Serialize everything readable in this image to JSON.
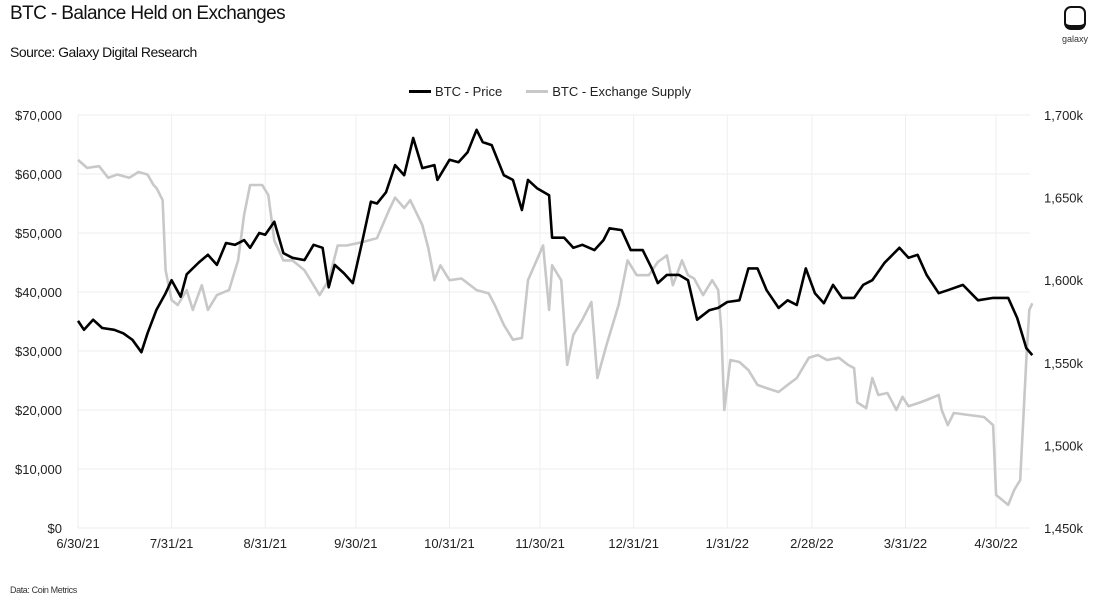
{
  "header": {
    "title": "BTC - Balance Held on Exchanges",
    "subtitle": "Source: Galaxy Digital Research",
    "logo_text": "galaxy"
  },
  "footer": {
    "note": "Data: Coin Metrics"
  },
  "colors": {
    "price": "#000000",
    "supply": "#c8c8c8",
    "grid": "#eeeeee"
  },
  "chart_data": {
    "type": "line",
    "title": "BTC - Balance Held on Exchanges",
    "legend": {
      "placement": "top-center",
      "entries": [
        "BTC - Price",
        "BTC - Exchange Supply"
      ]
    },
    "grid": true,
    "x_axis": {
      "type": "date",
      "range": [
        "2021-06-30",
        "2022-05-12"
      ],
      "tick_dates": [
        "2021-06-30",
        "2021-07-31",
        "2021-08-31",
        "2021-09-30",
        "2021-10-31",
        "2021-11-30",
        "2021-12-31",
        "2022-01-31",
        "2022-02-28",
        "2022-03-31",
        "2022-04-30"
      ],
      "tick_labels": [
        "6/30/21",
        "7/31/21",
        "8/31/21",
        "9/30/21",
        "10/31/21",
        "11/30/21",
        "12/31/21",
        "1/31/22",
        "2/28/22",
        "3/31/22",
        "4/30/22"
      ]
    },
    "y_left": {
      "range": [
        0,
        70000
      ],
      "ticks": [
        0,
        10000,
        20000,
        30000,
        40000,
        50000,
        60000,
        70000
      ],
      "tick_labels": [
        "$0",
        "$10,000",
        "$20,000",
        "$30,000",
        "$40,000",
        "$50,000",
        "$60,000",
        "$70,000"
      ]
    },
    "y_right": {
      "range": [
        1450,
        1700
      ],
      "ticks": [
        1450,
        1500,
        1550,
        1600,
        1650,
        1700
      ],
      "tick_labels": [
        "1,450k",
        "1,500k",
        "1,550k",
        "1,600k",
        "1,650k",
        "1,700k"
      ]
    },
    "series": [
      {
        "name": "BTC - Price",
        "axis": "left",
        "points": [
          [
            "2021-06-30",
            35100
          ],
          [
            "2021-07-02",
            33600
          ],
          [
            "2021-07-05",
            35300
          ],
          [
            "2021-07-08",
            33900
          ],
          [
            "2021-07-12",
            33600
          ],
          [
            "2021-07-15",
            33000
          ],
          [
            "2021-07-18",
            31900
          ],
          [
            "2021-07-21",
            29800
          ],
          [
            "2021-07-23",
            33000
          ],
          [
            "2021-07-26",
            37000
          ],
          [
            "2021-07-29",
            39800
          ],
          [
            "2021-07-31",
            42000
          ],
          [
            "2021-08-03",
            39200
          ],
          [
            "2021-08-05",
            43000
          ],
          [
            "2021-08-09",
            45000
          ],
          [
            "2021-08-12",
            46300
          ],
          [
            "2021-08-15",
            44600
          ],
          [
            "2021-08-18",
            48300
          ],
          [
            "2021-08-21",
            48000
          ],
          [
            "2021-08-24",
            48800
          ],
          [
            "2021-08-26",
            47500
          ],
          [
            "2021-08-29",
            50000
          ],
          [
            "2021-08-31",
            49700
          ],
          [
            "2021-09-03",
            51900
          ],
          [
            "2021-09-06",
            46600
          ],
          [
            "2021-09-09",
            45800
          ],
          [
            "2021-09-13",
            45400
          ],
          [
            "2021-09-16",
            48000
          ],
          [
            "2021-09-19",
            47500
          ],
          [
            "2021-09-21",
            40800
          ],
          [
            "2021-09-23",
            44600
          ],
          [
            "2021-09-26",
            43200
          ],
          [
            "2021-09-29",
            41500
          ],
          [
            "2021-10-02",
            48300
          ],
          [
            "2021-10-05",
            55300
          ],
          [
            "2021-10-07",
            55000
          ],
          [
            "2021-10-10",
            56900
          ],
          [
            "2021-10-13",
            61500
          ],
          [
            "2021-10-16",
            59800
          ],
          [
            "2021-10-19",
            66100
          ],
          [
            "2021-10-22",
            61000
          ],
          [
            "2021-10-26",
            61500
          ],
          [
            "2021-10-27",
            59000
          ],
          [
            "2021-10-31",
            62400
          ],
          [
            "2021-11-03",
            62000
          ],
          [
            "2021-11-06",
            63700
          ],
          [
            "2021-11-09",
            67500
          ],
          [
            "2021-11-11",
            65400
          ],
          [
            "2021-11-14",
            64900
          ],
          [
            "2021-11-18",
            59800
          ],
          [
            "2021-11-21",
            59000
          ],
          [
            "2021-11-24",
            53900
          ],
          [
            "2021-11-26",
            59000
          ],
          [
            "2021-11-29",
            57600
          ],
          [
            "2021-12-03",
            56400
          ],
          [
            "2021-12-04",
            49200
          ],
          [
            "2021-12-08",
            49200
          ],
          [
            "2021-12-11",
            47500
          ],
          [
            "2021-12-14",
            48000
          ],
          [
            "2021-12-18",
            47100
          ],
          [
            "2021-12-21",
            48800
          ],
          [
            "2021-12-23",
            50800
          ],
          [
            "2021-12-27",
            50500
          ],
          [
            "2021-12-30",
            47100
          ],
          [
            "2022-01-03",
            47100
          ],
          [
            "2022-01-06",
            44000
          ],
          [
            "2022-01-08",
            41500
          ],
          [
            "2022-01-11",
            42900
          ],
          [
            "2022-01-15",
            42900
          ],
          [
            "2022-01-18",
            42000
          ],
          [
            "2022-01-21",
            35300
          ],
          [
            "2022-01-25",
            36900
          ],
          [
            "2022-01-28",
            37300
          ],
          [
            "2022-01-31",
            38300
          ],
          [
            "2022-02-04",
            38600
          ],
          [
            "2022-02-07",
            44000
          ],
          [
            "2022-02-10",
            44000
          ],
          [
            "2022-02-13",
            40300
          ],
          [
            "2022-02-17",
            37300
          ],
          [
            "2022-02-20",
            38600
          ],
          [
            "2022-02-23",
            37800
          ],
          [
            "2022-02-26",
            44000
          ],
          [
            "2022-03-01",
            39800
          ],
          [
            "2022-03-04",
            38100
          ],
          [
            "2022-03-07",
            41200
          ],
          [
            "2022-03-10",
            39000
          ],
          [
            "2022-03-14",
            39000
          ],
          [
            "2022-03-17",
            41200
          ],
          [
            "2022-03-20",
            42000
          ],
          [
            "2022-03-24",
            44900
          ],
          [
            "2022-03-29",
            47500
          ],
          [
            "2022-04-01",
            45800
          ],
          [
            "2022-04-04",
            46300
          ],
          [
            "2022-04-07",
            42900
          ],
          [
            "2022-04-11",
            39800
          ],
          [
            "2022-04-14",
            40300
          ],
          [
            "2022-04-19",
            41200
          ],
          [
            "2022-04-24",
            38600
          ],
          [
            "2022-04-29",
            39000
          ],
          [
            "2022-05-04",
            39000
          ],
          [
            "2022-05-07",
            35600
          ],
          [
            "2022-05-10",
            30500
          ],
          [
            "2022-05-12",
            29300
          ]
        ]
      },
      {
        "name": "BTC - Exchange Supply",
        "axis": "right",
        "points": [
          [
            "2021-06-30",
            1672.8
          ],
          [
            "2021-07-03",
            1668
          ],
          [
            "2021-07-07",
            1669
          ],
          [
            "2021-07-10",
            1662
          ],
          [
            "2021-07-13",
            1664
          ],
          [
            "2021-07-17",
            1662
          ],
          [
            "2021-07-20",
            1665.5
          ],
          [
            "2021-07-23",
            1664
          ],
          [
            "2021-07-25",
            1657.6
          ],
          [
            "2021-07-26",
            1655.8
          ],
          [
            "2021-07-28",
            1648.5
          ],
          [
            "2021-07-29",
            1606
          ],
          [
            "2021-07-31",
            1588
          ],
          [
            "2021-08-02",
            1585
          ],
          [
            "2021-08-05",
            1594
          ],
          [
            "2021-08-07",
            1582
          ],
          [
            "2021-08-10",
            1597
          ],
          [
            "2021-08-12",
            1582
          ],
          [
            "2021-08-15",
            1591
          ],
          [
            "2021-08-19",
            1594
          ],
          [
            "2021-08-22",
            1612
          ],
          [
            "2021-08-24",
            1639.5
          ],
          [
            "2021-08-26",
            1657.6
          ],
          [
            "2021-08-30",
            1657.6
          ],
          [
            "2021-09-01",
            1651.6
          ],
          [
            "2021-09-03",
            1624
          ],
          [
            "2021-09-06",
            1612
          ],
          [
            "2021-09-09",
            1612
          ],
          [
            "2021-09-13",
            1606
          ],
          [
            "2021-09-16",
            1597
          ],
          [
            "2021-09-18",
            1591
          ],
          [
            "2021-09-21",
            1600
          ],
          [
            "2021-09-24",
            1621
          ],
          [
            "2021-09-27",
            1621
          ],
          [
            "2021-10-02",
            1623
          ],
          [
            "2021-10-07",
            1625.5
          ],
          [
            "2021-10-11",
            1642.5
          ],
          [
            "2021-10-13",
            1650
          ],
          [
            "2021-10-16",
            1643.7
          ],
          [
            "2021-10-18",
            1648.5
          ],
          [
            "2021-10-22",
            1633.4
          ],
          [
            "2021-10-24",
            1619.5
          ],
          [
            "2021-10-26",
            1600
          ],
          [
            "2021-10-28",
            1609
          ],
          [
            "2021-10-31",
            1600
          ],
          [
            "2021-11-04",
            1601
          ],
          [
            "2021-11-09",
            1594
          ],
          [
            "2021-11-13",
            1592
          ],
          [
            "2021-11-15",
            1585
          ],
          [
            "2021-11-18",
            1573
          ],
          [
            "2021-11-21",
            1564
          ],
          [
            "2021-11-24",
            1565
          ],
          [
            "2021-11-26",
            1600
          ],
          [
            "2021-12-01",
            1621
          ],
          [
            "2021-12-03",
            1582
          ],
          [
            "2021-12-04",
            1609
          ],
          [
            "2021-12-07",
            1600
          ],
          [
            "2021-12-09",
            1548.7
          ],
          [
            "2021-12-11",
            1566.8
          ],
          [
            "2021-12-14",
            1576
          ],
          [
            "2021-12-17",
            1586.8
          ],
          [
            "2021-12-19",
            1540.8
          ],
          [
            "2021-12-22",
            1560.8
          ],
          [
            "2021-12-26",
            1585
          ],
          [
            "2021-12-29",
            1612
          ],
          [
            "2022-01-01",
            1603
          ],
          [
            "2022-01-05",
            1603
          ],
          [
            "2022-01-08",
            1611
          ],
          [
            "2022-01-11",
            1615
          ],
          [
            "2022-01-13",
            1597
          ],
          [
            "2022-01-16",
            1612
          ],
          [
            "2022-01-18",
            1603
          ],
          [
            "2022-01-20",
            1601
          ],
          [
            "2022-01-23",
            1591
          ],
          [
            "2022-01-26",
            1600
          ],
          [
            "2022-01-28",
            1594
          ],
          [
            "2022-01-29",
            1570
          ],
          [
            "2022-01-30",
            1521.4
          ],
          [
            "2022-02-01",
            1551.7
          ],
          [
            "2022-02-04",
            1550.5
          ],
          [
            "2022-02-07",
            1545.6
          ],
          [
            "2022-02-10",
            1536.6
          ],
          [
            "2022-02-13",
            1534.7
          ],
          [
            "2022-02-17",
            1532.3
          ],
          [
            "2022-02-20",
            1536.6
          ],
          [
            "2022-02-23",
            1540.8
          ],
          [
            "2022-02-27",
            1553
          ],
          [
            "2022-03-02",
            1554.7
          ],
          [
            "2022-03-05",
            1551.7
          ],
          [
            "2022-03-09",
            1553
          ],
          [
            "2022-03-12",
            1548.7
          ],
          [
            "2022-03-14",
            1546.8
          ],
          [
            "2022-03-15",
            1526
          ],
          [
            "2022-03-18",
            1522.6
          ],
          [
            "2022-03-20",
            1540.8
          ],
          [
            "2022-03-22",
            1530.5
          ],
          [
            "2022-03-25",
            1531.7
          ],
          [
            "2022-03-28",
            1521.4
          ],
          [
            "2022-03-30",
            1529.4
          ],
          [
            "2022-04-01",
            1523.7
          ],
          [
            "2022-04-04",
            1525.5
          ],
          [
            "2022-04-07",
            1527.5
          ],
          [
            "2022-04-11",
            1530.5
          ],
          [
            "2022-04-12",
            1521.4
          ],
          [
            "2022-04-14",
            1512.3
          ],
          [
            "2022-04-16",
            1519.6
          ],
          [
            "2022-04-21",
            1518.4
          ],
          [
            "2022-04-26",
            1517.2
          ],
          [
            "2022-04-29",
            1512.3
          ],
          [
            "2022-04-30",
            1470
          ],
          [
            "2022-05-02",
            1467
          ],
          [
            "2022-05-04",
            1464
          ],
          [
            "2022-05-06",
            1473
          ],
          [
            "2022-05-08",
            1479
          ],
          [
            "2022-05-10",
            1551.7
          ],
          [
            "2022-05-11",
            1582
          ],
          [
            "2022-05-12",
            1586
          ]
        ]
      }
    ]
  }
}
